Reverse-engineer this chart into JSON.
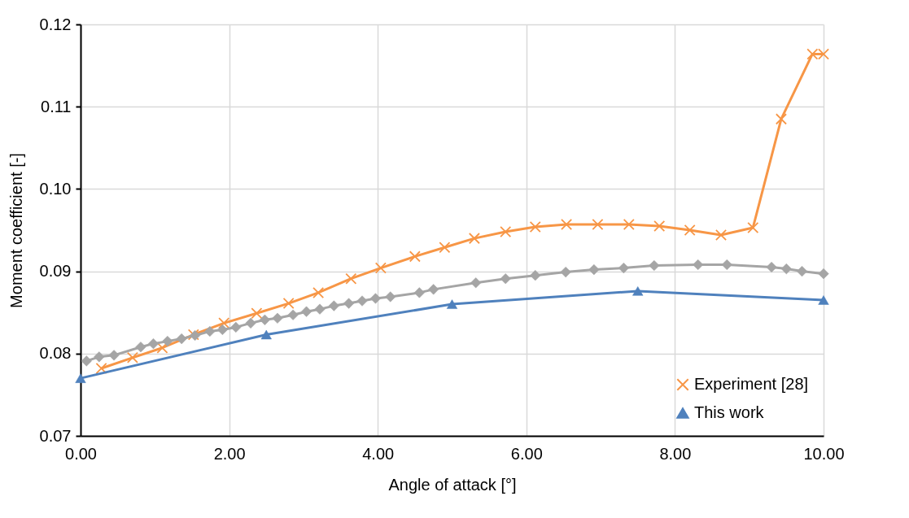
{
  "chart_data": {
    "type": "line",
    "xlabel": "Angle of attack [°]",
    "ylabel": "Moment coefficient [-]",
    "xlim": [
      0,
      10
    ],
    "xticks": [
      {
        "value": 0,
        "label": "0.00"
      },
      {
        "value": 2,
        "label": "2.00"
      },
      {
        "value": 4,
        "label": "4.00"
      },
      {
        "value": 6,
        "label": "6.00"
      },
      {
        "value": 8,
        "label": "8.00"
      },
      {
        "value": 10,
        "label": "10.00"
      }
    ],
    "ylim": [
      0.07,
      0.12
    ],
    "yticks": [
      0.07,
      0.08,
      0.09,
      {
        "value": 0.1,
        "label": "0.10"
      },
      0.11,
      0.12
    ],
    "grid": true,
    "legend": "bottom right",
    "series": [
      {
        "name": "Experiment [28]",
        "color": "#f79646",
        "marker": "cross",
        "x": [
          0.28,
          0.7,
          1.1,
          1.52,
          1.93,
          2.37,
          2.8,
          3.2,
          3.64,
          4.04,
          4.5,
          4.9,
          5.3,
          5.72,
          6.12,
          6.54,
          6.96,
          7.38,
          7.79,
          8.2,
          8.62,
          9.05,
          9.43,
          9.85,
          10
        ],
        "values": [
          0.0782,
          0.0795,
          0.0807,
          0.0823,
          0.0837,
          0.0849,
          0.0861,
          0.0874,
          0.0891,
          0.0904,
          0.0918,
          0.0929,
          0.094,
          0.0948,
          0.0954,
          0.0957,
          0.0957,
          0.0957,
          0.0955,
          0.095,
          0.0944,
          0.0953,
          0.1085,
          0.1164,
          0.1164
        ]
      },
      {
        "name": "This work",
        "color": "#4f81bd",
        "marker": "triangle",
        "x": [
          0,
          2.5,
          5,
          7.5,
          10
        ],
        "values": [
          0.077,
          0.0823,
          0.086,
          0.0876,
          0.0865
        ]
      },
      {
        "color": "#a5a5a5",
        "marker": "diamond",
        "x": [
          0.08,
          0.25,
          0.45,
          0.81,
          0.98,
          1.17,
          1.36,
          1.54,
          1.74,
          1.91,
          2.09,
          2.29,
          2.48,
          2.65,
          2.86,
          3.04,
          3.22,
          3.41,
          3.61,
          3.79,
          3.97,
          4.17,
          4.56,
          4.75,
          5.32,
          5.72,
          6.12,
          6.53,
          6.91,
          7.31,
          7.72,
          8.31,
          8.7,
          9.3,
          9.5,
          9.71,
          10
        ],
        "values": [
          0.0791,
          0.0796,
          0.0798,
          0.0808,
          0.0812,
          0.0815,
          0.0818,
          0.0822,
          0.0827,
          0.0829,
          0.0832,
          0.0837,
          0.0841,
          0.0843,
          0.0847,
          0.0851,
          0.0854,
          0.0858,
          0.0861,
          0.0864,
          0.0867,
          0.0869,
          0.0874,
          0.0878,
          0.0886,
          0.0891,
          0.0895,
          0.0899,
          0.0902,
          0.0904,
          0.0907,
          0.0908,
          0.0908,
          0.0905,
          0.0903,
          0.09,
          0.0897
        ]
      }
    ]
  }
}
